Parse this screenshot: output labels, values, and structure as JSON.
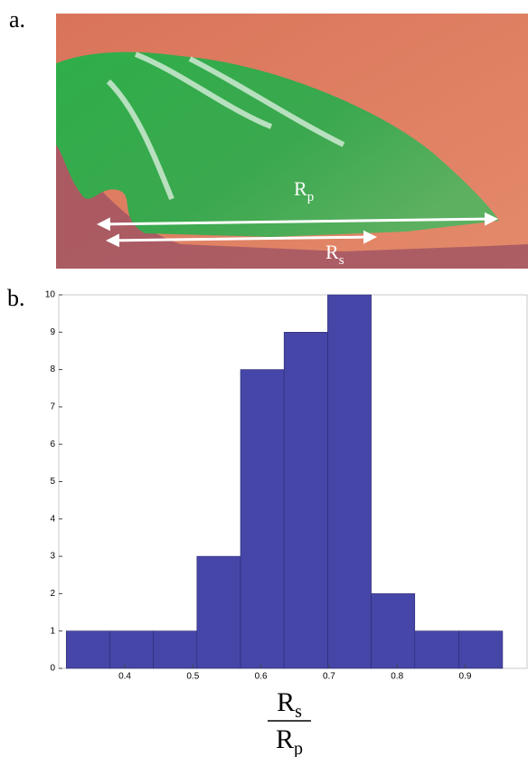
{
  "panel_a": {
    "label": "a.",
    "annotations": [
      {
        "main": "R",
        "sub": "p"
      },
      {
        "main": "R",
        "sub": "s"
      }
    ]
  },
  "chart_data": {
    "type": "histogram",
    "panel_label": "b.",
    "bins": [
      0.314,
      0.378,
      0.442,
      0.506,
      0.57,
      0.634,
      0.698,
      0.762,
      0.826,
      0.891,
      0.955
    ],
    "values": [
      1,
      1,
      1,
      3,
      8,
      9,
      10,
      2,
      1,
      1
    ],
    "color": "#4646a8",
    "xlim": [
      0.303,
      0.991
    ],
    "xticks": [
      0.4,
      0.5,
      0.6,
      0.7,
      0.8,
      0.9
    ],
    "ylim": [
      0,
      10
    ],
    "yticks": [
      0,
      1,
      2,
      3,
      4,
      5,
      6,
      7,
      8,
      9,
      10
    ],
    "xlabel": {
      "numerator": {
        "main": "R",
        "sub": "s"
      },
      "denominator": {
        "main": "R",
        "sub": "p"
      }
    }
  }
}
